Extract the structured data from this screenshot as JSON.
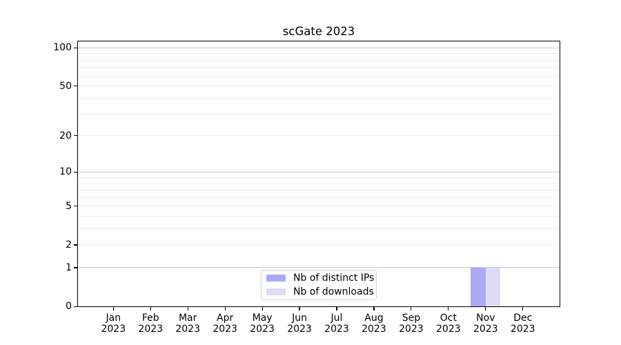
{
  "chart_data": {
    "type": "bar",
    "title": "scGate 2023",
    "x_categories": [
      "Jan",
      "Feb",
      "Mar",
      "Apr",
      "May",
      "Jun",
      "Jul",
      "Aug",
      "Sep",
      "Oct",
      "Nov",
      "Dec"
    ],
    "x_sublabel": "2023",
    "series": [
      {
        "name": "Nb of distinct IPs",
        "color": "#a9a9f5",
        "values": [
          0,
          0,
          0,
          0,
          0,
          0,
          0,
          0,
          0,
          0,
          1,
          0
        ]
      },
      {
        "name": "Nb of downloads",
        "color": "#dcdcf8",
        "values": [
          0,
          0,
          0,
          0,
          0,
          0,
          0,
          0,
          0,
          0,
          1,
          0
        ]
      }
    ],
    "ylabel": "",
    "xlabel": "",
    "yticks": [
      0,
      1,
      2,
      5,
      10,
      20,
      50,
      100
    ],
    "ylim": [
      0,
      112
    ],
    "yscale": "symlog (y ~ log10(1+v))",
    "grid": {
      "major": [
        1,
        10,
        100
      ],
      "minor": [
        2,
        3,
        4,
        5,
        6,
        7,
        8,
        9,
        20,
        30,
        40,
        50,
        60,
        70,
        80,
        90
      ]
    },
    "legend_position": "lower center",
    "colors": {
      "grid_major": "#c9c9c9",
      "grid_minor": "#ececec",
      "axis": "#000000",
      "legend_border": "#d2d2d2",
      "background": "#ffffff"
    }
  }
}
